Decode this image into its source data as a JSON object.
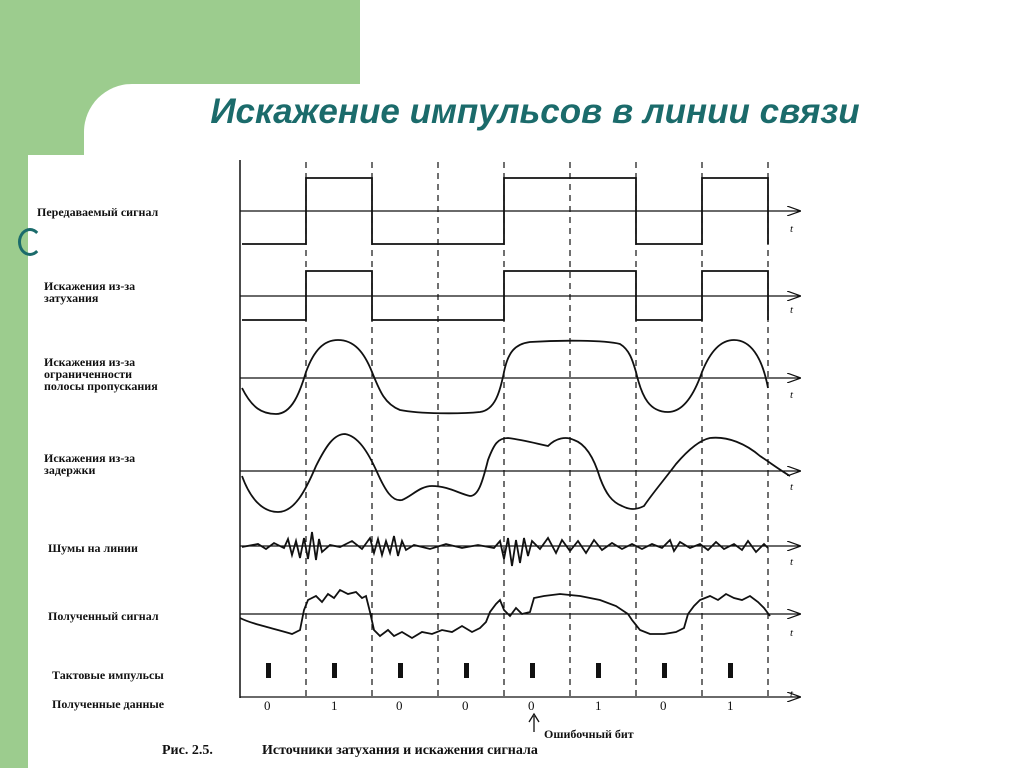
{
  "slide": {
    "title": "Искажение импульсов в линии связи"
  },
  "diagram": {
    "rows": [
      {
        "label_lines": [
          "Передаваемый сигнал"
        ]
      },
      {
        "label_lines": [
          "Искажения из-за",
          "затухания"
        ]
      },
      {
        "label_lines": [
          "Искажения из-за",
          "ограниченности",
          "полосы пропускания"
        ]
      },
      {
        "label_lines": [
          "Искажения из-за",
          "задержки"
        ]
      },
      {
        "label_lines": [
          "Шумы на линии"
        ]
      },
      {
        "label_lines": [
          "Полученный сигнал"
        ]
      },
      {
        "label_lines": [
          "Тактовые импульсы"
        ]
      },
      {
        "label_lines": [
          "Полученные данные"
        ]
      }
    ],
    "axis_symbol": "t",
    "received_bits": [
      "0",
      "1",
      "0",
      "0",
      "0",
      "1",
      "0",
      "1"
    ],
    "error_label": "Ошибочный бит",
    "caption_prefix": "Рис. 2.5.",
    "caption_text": "Источники затухания и искажения сигнала"
  }
}
